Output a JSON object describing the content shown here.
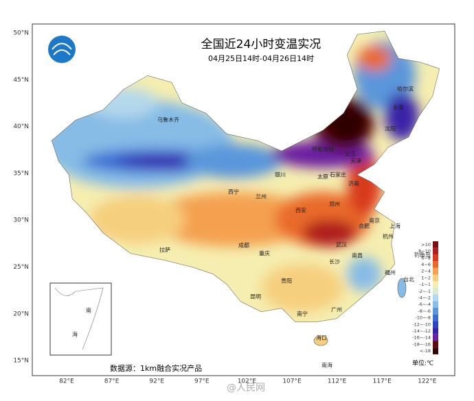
{
  "map": {
    "title": "全国近24小时变温实况",
    "subtitle": "04月25日14时-04月26日14时",
    "source": "数据源：1km融合实况产品",
    "unit": "单位:℃",
    "watermark": "@人民网",
    "lat_labels": [
      "50°N",
      "45°N",
      "40°N",
      "35°N",
      "30°N",
      "25°N",
      "20°N",
      "15°N"
    ],
    "lon_labels": [
      "82°E",
      "87°E",
      "92°E",
      "97°E",
      "102°E",
      "107°E",
      "112°E",
      "117°E",
      "122°E"
    ],
    "cities": [
      "乌鲁木齐",
      "哈尔滨",
      "长春",
      "沈阳",
      "呼和浩特",
      "北京",
      "天津",
      "石家庄",
      "太原",
      "济南",
      "银川",
      "西宁",
      "兰州",
      "郑州",
      "西安",
      "南京",
      "合肥",
      "上海",
      "杭州",
      "成都",
      "武汉",
      "重庆",
      "长沙",
      "南昌",
      "拉萨",
      "贵阳",
      "福州",
      "台北",
      "昆明",
      "南宁",
      "广州",
      "海口",
      "钓鱼岛"
    ],
    "inset_labels": [
      "南",
      "海"
    ],
    "sea_label": "南海",
    "legend": [
      {
        "label": ">10",
        "color": "#7a1010"
      },
      {
        "label": "8~10",
        "color": "#b01e1e"
      },
      {
        "label": "6~8",
        "color": "#d83a1e"
      },
      {
        "label": "4~6",
        "color": "#ea6a2a"
      },
      {
        "label": "2~4",
        "color": "#f4a050"
      },
      {
        "label": "1~2",
        "color": "#f6cf7e"
      },
      {
        "label": "-1~1",
        "color": "#f5eeb0"
      },
      {
        "label": "-2~-1",
        "color": "#d8ecd4"
      },
      {
        "label": "-4~-2",
        "color": "#b4d8ec"
      },
      {
        "label": "-6~-4",
        "color": "#86bce6"
      },
      {
        "label": "-8~-6",
        "color": "#5a96dc"
      },
      {
        "label": "-10~-8",
        "color": "#3a6ed4"
      },
      {
        "label": "-12~-10",
        "color": "#2a46c0"
      },
      {
        "label": "-14~-12",
        "color": "#3a22a8"
      },
      {
        "label": "-16~-14",
        "color": "#6a1ea0"
      },
      {
        "label": "-18~-16",
        "color": "#5a1010"
      },
      {
        "label": "<-18",
        "color": "#2e0606"
      }
    ]
  }
}
